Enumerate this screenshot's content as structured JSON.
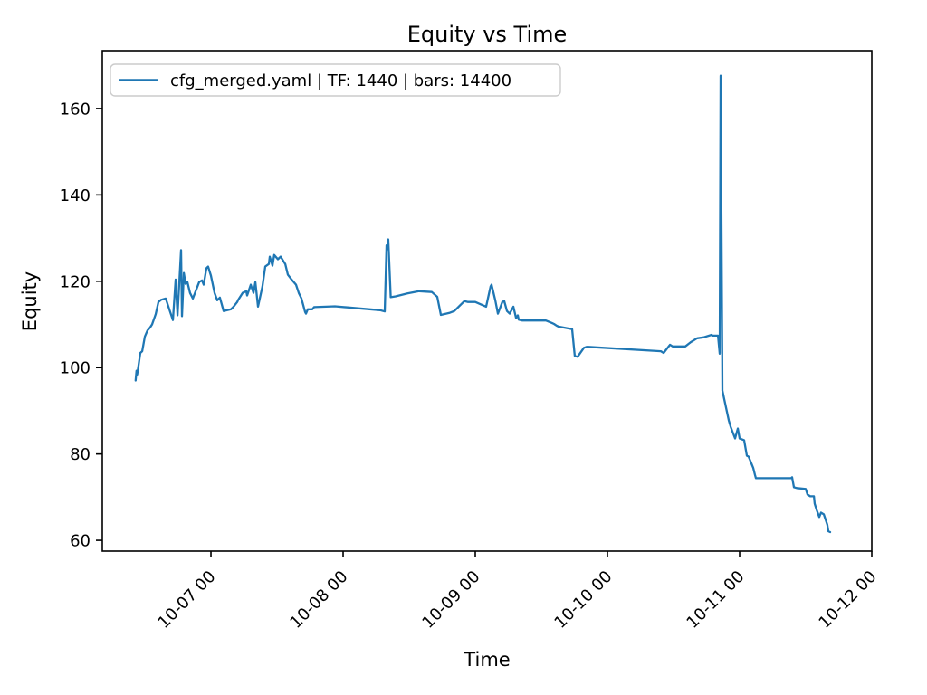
{
  "figure": {
    "background": "#ffffff"
  },
  "chart_data": {
    "type": "line",
    "title": "Equity vs Time",
    "xlabel": "Time",
    "ylabel": "Equity",
    "grid": false,
    "legend": {
      "position": "upper left",
      "entries": [
        "cfg_merged.yaml | TF: 1440 | bars: 14400"
      ]
    },
    "x_axis": {
      "unit": "days relative to 10-07 00:00",
      "lim": [
        -0.822,
        5.0
      ],
      "tick_rotation_deg": 45,
      "ticks": [
        {
          "value": 0,
          "label": "10-07 00"
        },
        {
          "value": 1,
          "label": "10-08 00"
        },
        {
          "value": 2,
          "label": "10-09 00"
        },
        {
          "value": 3,
          "label": "10-10 00"
        },
        {
          "value": 4,
          "label": "10-11 00"
        },
        {
          "value": 5,
          "label": "10-12 00"
        }
      ]
    },
    "y_axis": {
      "lim": [
        57.5,
        173.4
      ],
      "ticks": [
        {
          "value": 60,
          "label": "60"
        },
        {
          "value": 80,
          "label": "80"
        },
        {
          "value": 100,
          "label": "100"
        },
        {
          "value": 120,
          "label": "120"
        },
        {
          "value": 140,
          "label": "140"
        },
        {
          "value": 160,
          "label": "160"
        }
      ]
    },
    "series": [
      {
        "name": "cfg_merged.yaml | TF: 1440 | bars: 14400",
        "color": "#1f77b4",
        "line_width": 2.3,
        "points": [
          [
            -0.57,
            97.0
          ],
          [
            -0.563,
            99.3
          ],
          [
            -0.558,
            98.4
          ],
          [
            -0.552,
            99.6
          ],
          [
            -0.534,
            103.4
          ],
          [
            -0.52,
            103.8
          ],
          [
            -0.5,
            107.2
          ],
          [
            -0.48,
            108.6
          ],
          [
            -0.46,
            109.3
          ],
          [
            -0.445,
            110.0
          ],
          [
            -0.418,
            112.4
          ],
          [
            -0.397,
            115.2
          ],
          [
            -0.377,
            115.7
          ],
          [
            -0.342,
            116.0
          ],
          [
            -0.315,
            113.5
          ],
          [
            -0.288,
            111.0
          ],
          [
            -0.267,
            120.4
          ],
          [
            -0.253,
            112.1
          ],
          [
            -0.226,
            127.2
          ],
          [
            -0.219,
            111.9
          ],
          [
            -0.205,
            121.9
          ],
          [
            -0.192,
            119.4
          ],
          [
            -0.178,
            119.8
          ],
          [
            -0.158,
            117.3
          ],
          [
            -0.137,
            116.0
          ],
          [
            -0.089,
            119.8
          ],
          [
            -0.068,
            120.2
          ],
          [
            -0.055,
            119.2
          ],
          [
            -0.034,
            123.0
          ],
          [
            -0.021,
            123.4
          ],
          [
            0.0,
            121.3
          ],
          [
            0.027,
            117.3
          ],
          [
            0.048,
            115.6
          ],
          [
            0.068,
            116.2
          ],
          [
            0.096,
            113.1
          ],
          [
            0.151,
            113.5
          ],
          [
            0.171,
            114.1
          ],
          [
            0.199,
            115.2
          ],
          [
            0.205,
            115.6
          ],
          [
            0.24,
            117.3
          ],
          [
            0.267,
            117.7
          ],
          [
            0.274,
            116.7
          ],
          [
            0.301,
            119.2
          ],
          [
            0.322,
            117.3
          ],
          [
            0.336,
            119.8
          ],
          [
            0.356,
            114.1
          ],
          [
            0.39,
            118.8
          ],
          [
            0.411,
            123.4
          ],
          [
            0.438,
            124.0
          ],
          [
            0.445,
            125.7
          ],
          [
            0.466,
            123.6
          ],
          [
            0.479,
            126.1
          ],
          [
            0.507,
            125.1
          ],
          [
            0.527,
            125.7
          ],
          [
            0.562,
            124.0
          ],
          [
            0.582,
            121.5
          ],
          [
            0.61,
            120.4
          ],
          [
            0.644,
            119.2
          ],
          [
            0.664,
            117.3
          ],
          [
            0.685,
            116.0
          ],
          [
            0.712,
            112.9
          ],
          [
            0.719,
            112.5
          ],
          [
            0.733,
            113.5
          ],
          [
            0.767,
            113.5
          ],
          [
            0.781,
            114.0
          ],
          [
            0.938,
            114.2
          ],
          [
            1.28,
            113.3
          ],
          [
            1.315,
            113.0
          ],
          [
            1.329,
            128.3
          ],
          [
            1.335,
            127.4
          ],
          [
            1.342,
            129.7
          ],
          [
            1.36,
            116.3
          ],
          [
            1.397,
            116.5
          ],
          [
            1.486,
            117.2
          ],
          [
            1.575,
            117.7
          ],
          [
            1.671,
            117.5
          ],
          [
            1.712,
            116.4
          ],
          [
            1.74,
            112.2
          ],
          [
            1.808,
            112.7
          ],
          [
            1.842,
            113.1
          ],
          [
            1.918,
            115.4
          ],
          [
            1.945,
            115.2
          ],
          [
            2.0,
            115.2
          ],
          [
            2.082,
            114.1
          ],
          [
            2.116,
            118.8
          ],
          [
            2.123,
            119.2
          ],
          [
            2.151,
            115.6
          ],
          [
            2.171,
            112.5
          ],
          [
            2.205,
            115.2
          ],
          [
            2.219,
            115.4
          ],
          [
            2.24,
            113.1
          ],
          [
            2.26,
            112.5
          ],
          [
            2.288,
            114.1
          ],
          [
            2.308,
            111.5
          ],
          [
            2.322,
            112.1
          ],
          [
            2.329,
            111.1
          ],
          [
            2.356,
            110.9
          ],
          [
            2.534,
            110.9
          ],
          [
            2.582,
            110.3
          ],
          [
            2.596,
            110.1
          ],
          [
            2.616,
            109.7
          ],
          [
            2.63,
            109.5
          ],
          [
            2.733,
            108.9
          ],
          [
            2.753,
            102.7
          ],
          [
            2.774,
            102.5
          ],
          [
            2.822,
            104.6
          ],
          [
            2.842,
            104.8
          ],
          [
            2.856,
            104.8
          ],
          [
            3.404,
            103.8
          ],
          [
            3.425,
            103.4
          ],
          [
            3.473,
            105.3
          ],
          [
            3.493,
            104.9
          ],
          [
            3.589,
            104.9
          ],
          [
            3.63,
            105.9
          ],
          [
            3.678,
            106.8
          ],
          [
            3.726,
            107.0
          ],
          [
            3.788,
            107.6
          ],
          [
            3.795,
            107.4
          ],
          [
            3.836,
            107.4
          ],
          [
            3.849,
            103.2
          ],
          [
            3.856,
            167.6
          ],
          [
            3.87,
            94.7
          ],
          [
            3.884,
            92.6
          ],
          [
            3.918,
            87.8
          ],
          [
            3.932,
            86.3
          ],
          [
            3.966,
            83.6
          ],
          [
            3.986,
            85.9
          ],
          [
            4.0,
            83.6
          ],
          [
            4.034,
            83.2
          ],
          [
            4.055,
            79.6
          ],
          [
            4.068,
            79.4
          ],
          [
            4.103,
            76.8
          ],
          [
            4.116,
            75.2
          ],
          [
            4.123,
            74.4
          ],
          [
            4.39,
            74.4
          ],
          [
            4.397,
            74.6
          ],
          [
            4.411,
            72.3
          ],
          [
            4.432,
            72.1
          ],
          [
            4.5,
            71.9
          ],
          [
            4.514,
            70.6
          ],
          [
            4.534,
            70.2
          ],
          [
            4.562,
            70.2
          ],
          [
            4.568,
            68.5
          ],
          [
            4.582,
            67.1
          ],
          [
            4.603,
            65.4
          ],
          [
            4.616,
            66.4
          ],
          [
            4.637,
            66.0
          ],
          [
            4.664,
            63.6
          ],
          [
            4.671,
            62.1
          ],
          [
            4.685,
            61.9
          ]
        ]
      }
    ]
  }
}
